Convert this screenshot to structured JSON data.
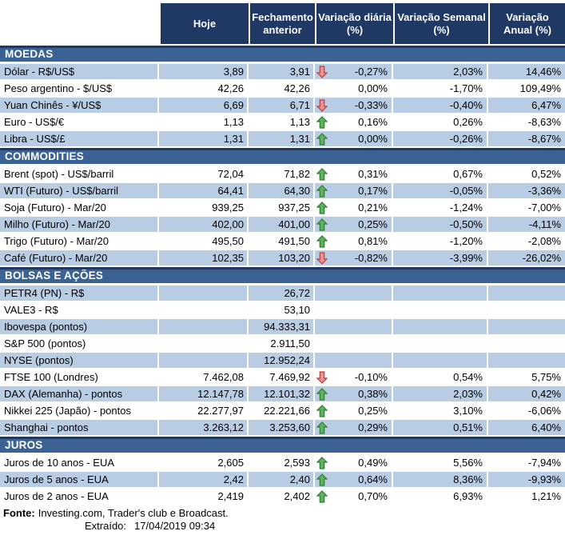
{
  "header": {
    "columns": [
      {
        "line1": "Hoje",
        "line2": ""
      },
      {
        "line1": "Fechamento",
        "line2": "anterior"
      },
      {
        "line1": "Variação diária",
        "line2": "(%)"
      },
      {
        "line1": "Variação Semanal",
        "line2": "(%)"
      },
      {
        "line1": "Variação",
        "line2": "Anual (%)"
      }
    ]
  },
  "sections": [
    {
      "title": "MOEDAS",
      "first_row_shaded": true,
      "rows": [
        {
          "label": "Dólar - R$/US$",
          "hoje": "3,89",
          "fechamento": "3,91",
          "arrow": "down",
          "diaria": "-0,27%",
          "semanal": "2,03%",
          "anual": "14,46%"
        },
        {
          "label": "Peso argentino - $/US$",
          "hoje": "42,26",
          "fechamento": "42,26",
          "arrow": null,
          "diaria": "0,00%",
          "semanal": "-1,70%",
          "anual": "109,49%"
        },
        {
          "label": "Yuan Chinês - ¥/US$",
          "hoje": "6,69",
          "fechamento": "6,71",
          "arrow": "down",
          "diaria": "-0,33%",
          "semanal": "-0,40%",
          "anual": "6,47%"
        },
        {
          "label": "Euro - US$/€",
          "hoje": "1,13",
          "fechamento": "1,13",
          "arrow": "up",
          "diaria": "0,16%",
          "semanal": "0,26%",
          "anual": "-8,63%"
        },
        {
          "label": "Libra - US$/£",
          "hoje": "1,31",
          "fechamento": "1,31",
          "arrow": "up",
          "diaria": "0,00%",
          "semanal": "-0,26%",
          "anual": "-8,67%"
        }
      ]
    },
    {
      "title": "COMMODITIES",
      "first_row_shaded": false,
      "rows": [
        {
          "label": "Brent (spot) - US$/barril",
          "hoje": "72,04",
          "fechamento": "71,82",
          "arrow": "up",
          "diaria": "0,31%",
          "semanal": "0,67%",
          "anual": "0,52%"
        },
        {
          "label": "WTI (Futuro) - US$/barril",
          "hoje": "64,41",
          "fechamento": "64,30",
          "arrow": "up",
          "diaria": "0,17%",
          "semanal": "-0,05%",
          "anual": "-3,36%"
        },
        {
          "label": "Soja (Futuro) - Mar/20",
          "hoje": "939,25",
          "fechamento": "937,25",
          "arrow": "up",
          "diaria": "0,21%",
          "semanal": "-1,24%",
          "anual": "-7,00%"
        },
        {
          "label": "Milho (Futuro) - Mar/20",
          "hoje": "402,00",
          "fechamento": "401,00",
          "arrow": "up",
          "diaria": "0,25%",
          "semanal": "-0,50%",
          "anual": "-4,11%"
        },
        {
          "label": "Trigo (Futuro) - Mar/20",
          "hoje": "495,50",
          "fechamento": "491,50",
          "arrow": "up",
          "diaria": "0,81%",
          "semanal": "-1,20%",
          "anual": "-2,08%"
        },
        {
          "label": "Café (Futuro) - Mar/20",
          "hoje": "102,35",
          "fechamento": "103,20",
          "arrow": "down",
          "diaria": "-0,82%",
          "semanal": "-3,99%",
          "anual": "-26,02%"
        }
      ]
    },
    {
      "title": "BOLSAS E AÇÕES",
      "first_row_shaded": true,
      "rows": [
        {
          "label": "PETR4 (PN) - R$",
          "hoje": "",
          "fechamento": "26,72",
          "arrow": null,
          "diaria": "",
          "semanal": "",
          "anual": ""
        },
        {
          "label": "VALE3 - R$",
          "hoje": "",
          "fechamento": "53,10",
          "arrow": null,
          "diaria": "",
          "semanal": "",
          "anual": ""
        },
        {
          "label": "Ibovespa (pontos)",
          "hoje": "",
          "fechamento": "94.333,31",
          "arrow": null,
          "diaria": "",
          "semanal": "",
          "anual": ""
        },
        {
          "label": "S&P 500 (pontos)",
          "hoje": "",
          "fechamento": "2.911,50",
          "arrow": null,
          "diaria": "",
          "semanal": "",
          "anual": ""
        },
        {
          "label": "NYSE (pontos)",
          "hoje": "",
          "fechamento": "12.952,24",
          "arrow": null,
          "diaria": "",
          "semanal": "",
          "anual": ""
        },
        {
          "label": "FTSE 100 (Londres)",
          "hoje": "7.462,08",
          "fechamento": "7.469,92",
          "arrow": "down",
          "diaria": "-0,10%",
          "semanal": "0,54%",
          "anual": "5,75%"
        },
        {
          "label": "DAX (Alemanha) - pontos",
          "hoje": "12.147,78",
          "fechamento": "12.101,32",
          "arrow": "up",
          "diaria": "0,38%",
          "semanal": "2,03%",
          "anual": "0,42%"
        },
        {
          "label": "Nikkei 225 (Japão) - pontos",
          "hoje": "22.277,97",
          "fechamento": "22.221,66",
          "arrow": "up",
          "diaria": "0,25%",
          "semanal": "3,10%",
          "anual": "-6,06%"
        },
        {
          "label": "Shanghai - pontos",
          "hoje": "3.263,12",
          "fechamento": "3.253,60",
          "arrow": "up",
          "diaria": "0,29%",
          "semanal": "0,51%",
          "anual": "6,40%"
        }
      ]
    },
    {
      "title": "JUROS",
      "first_row_shaded": false,
      "rows": [
        {
          "label": "Juros de 10 anos - EUA",
          "hoje": "2,605",
          "fechamento": "2,593",
          "arrow": "up",
          "diaria": "0,49%",
          "semanal": "5,56%",
          "anual": "-7,94%"
        },
        {
          "label": "Juros de 5 anos - EUA",
          "hoje": "2,42",
          "fechamento": "2,40",
          "arrow": "up",
          "diaria": "0,64%",
          "semanal": "8,36%",
          "anual": "-9,93%"
        },
        {
          "label": "Juros de 2 anos - EUA",
          "hoje": "2,419",
          "fechamento": "2,402",
          "arrow": "up",
          "diaria": "0,70%",
          "semanal": "6,93%",
          "anual": "1,21%"
        }
      ]
    }
  ],
  "footer": {
    "fonte_label": "Fonte:",
    "fonte_text": "Investing.com, Trader's club e Broadcast.",
    "extraido_label": "Extraído:",
    "extraido_value": "17/04/2019 09:34"
  },
  "colors": {
    "header_bg": "#1F3864",
    "section_bg": "#3A6292",
    "section_border": "#1F3864",
    "row_shade": "#B8CCE4",
    "up_arrow_fill": "#5EB25E",
    "up_arrow_border": "#2E7D32",
    "down_arrow_fill": "#EC9190",
    "down_arrow_border": "#B5403E"
  }
}
